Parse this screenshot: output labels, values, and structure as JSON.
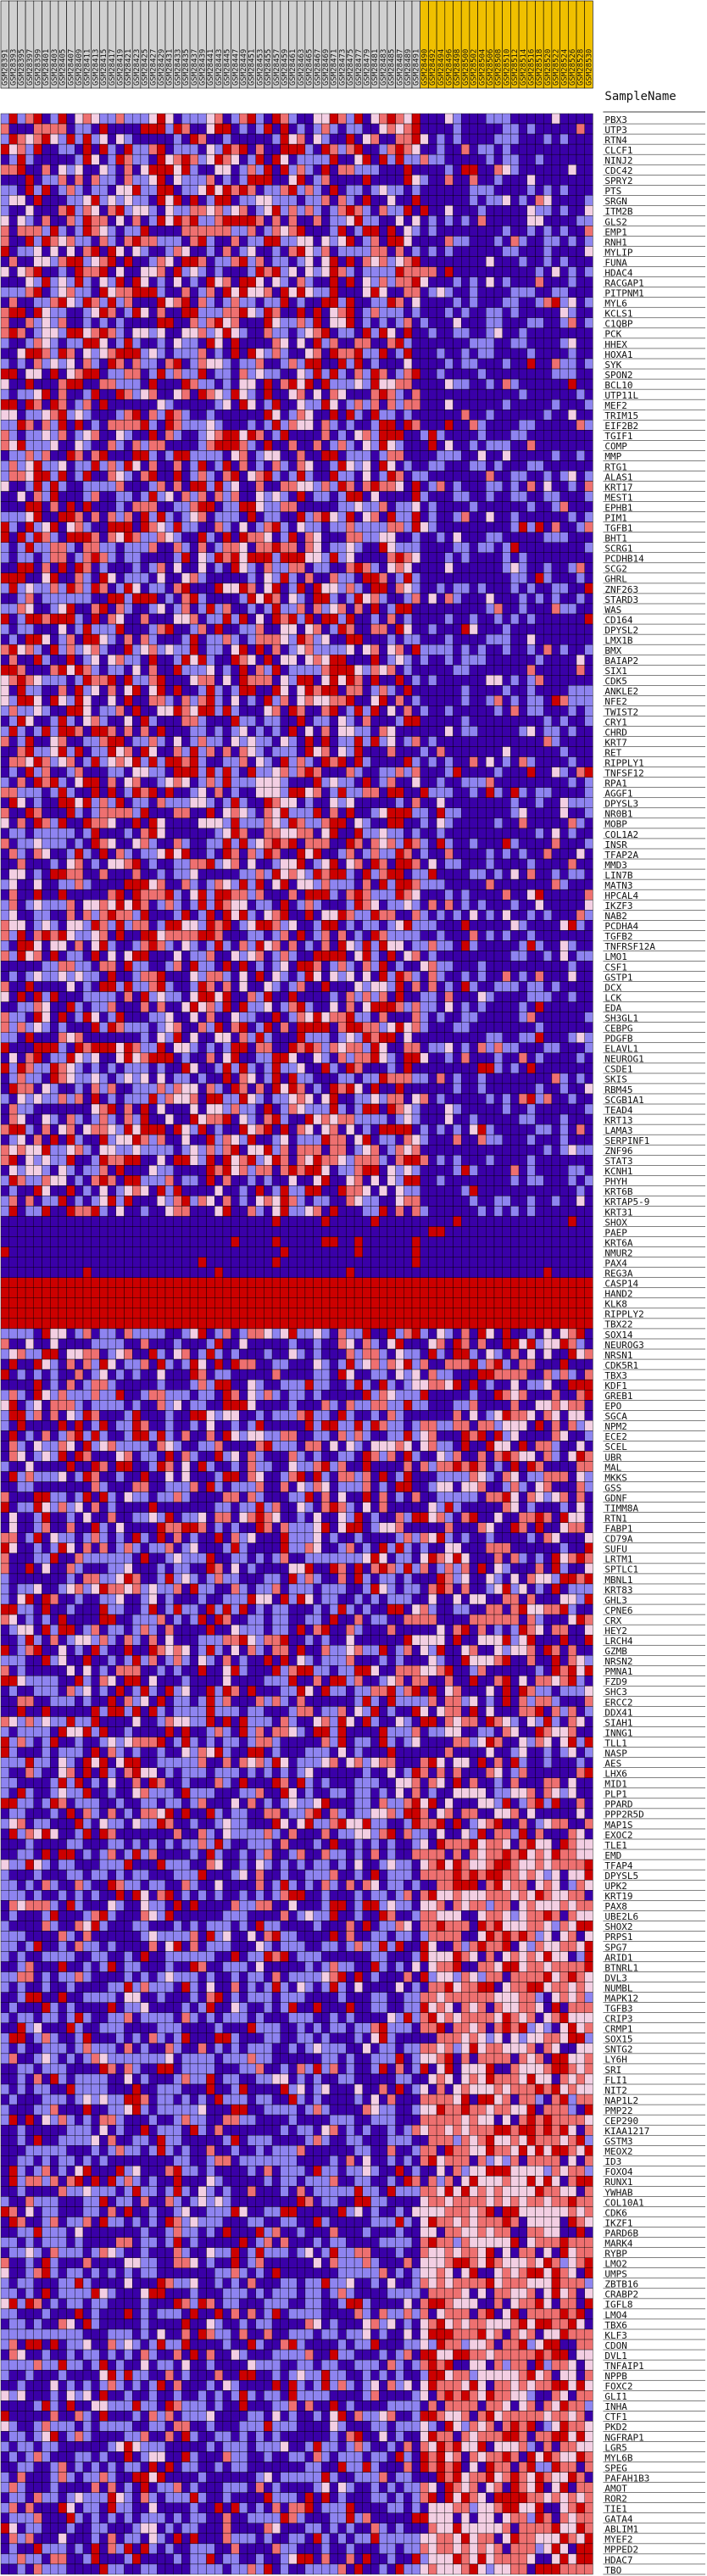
{
  "chart_data": {
    "type": "heatmap",
    "title": "",
    "header_label": "SampleName",
    "colors": {
      "low": "#3a00a8",
      "mid_low": "#8e84f0",
      "neutral": "#f3cfe3",
      "mid_high": "#ee7070",
      "high": "#cc0000",
      "sample_header_group_a": "#d0d0d0",
      "sample_header_group_b": "#f0c000",
      "grid": "#000000"
    },
    "samples": {
      "group_a": [
        "GSM28391",
        "GSM28393",
        "GSM28395",
        "GSM28397",
        "GSM28399",
        "GSM28401",
        "GSM28403",
        "GSM28405",
        "GSM28407",
        "GSM28409",
        "GSM28411",
        "GSM28413",
        "GSM28415",
        "GSM28417",
        "GSM28419",
        "GSM28421",
        "GSM28423",
        "GSM28425",
        "GSM28427",
        "GSM28429",
        "GSM28431",
        "GSM28433",
        "GSM28435",
        "GSM28437",
        "GSM28439",
        "GSM28441",
        "GSM28443",
        "GSM28445",
        "GSM28447",
        "GSM28449",
        "GSM28451",
        "GSM28453",
        "GSM28455",
        "GSM28457",
        "GSM28459",
        "GSM28461",
        "GSM28463",
        "GSM28465",
        "GSM28467",
        "GSM28469",
        "GSM28471",
        "GSM28473",
        "GSM28475",
        "GSM28477",
        "GSM28479",
        "GSM28481",
        "GSM28483",
        "GSM28485",
        "GSM28487",
        "GSM28489",
        "GSM28491"
      ],
      "group_b": [
        "GSM28490",
        "GSM28492",
        "GSM28494",
        "GSM28496",
        "GSM28498",
        "GSM28500",
        "GSM28502",
        "GSM28504",
        "GSM28506",
        "GSM28508",
        "GSM28510",
        "GSM28512",
        "GSM28514",
        "GSM28516",
        "GSM28518",
        "GSM28520",
        "GSM28522",
        "GSM28524",
        "GSM28526",
        "GSM28528",
        "GSM28530"
      ]
    },
    "genes": [
      "PBX3",
      "UTP3",
      "RTN4",
      "CLCF1",
      "NINJ2",
      "CDC42",
      "SPRY2",
      "PTS",
      "SRGN",
      "ITM2B",
      "GLS2",
      "EMP1",
      "RNH1",
      "MYLIP",
      "FUNA",
      "HDAC4",
      "RACGAP1",
      "PITPNM1",
      "MYL6",
      "KCLS1",
      "C1QBP",
      "PCK",
      "HHEX",
      "HOXA1",
      "SYK",
      "SPON2",
      "BCL10",
      "UTP11L",
      "MEF2",
      "TRIM15",
      "EIF2B2",
      "TGIF1",
      "COMP",
      "MMP",
      "RTG1",
      "ALAS1",
      "KRT17",
      "MEST1",
      "EPHB1",
      "PIM1",
      "TGFB1",
      "BHT1",
      "SCRG1",
      "PCDHB14",
      "SCG2",
      "GHRL",
      "ZNF263",
      "STARD3",
      "WAS",
      "CD164",
      "DPYSL2",
      "LMX1B",
      "BMX",
      "BAIAP2",
      "SIX1",
      "CDK5",
      "ANKLE2",
      "NFE2",
      "TWIST2",
      "CRY1",
      "CHRD",
      "KRT7",
      "RET",
      "RIPPLY1",
      "TNFSF12",
      "RPA1",
      "AGGF1",
      "DPYSL3",
      "NR0B1",
      "MOBP",
      "COL1A2",
      "INSR",
      "TFAP2A",
      "MMD3",
      "LIN7B",
      "MATN3",
      "HPCAL4",
      "IKZF3",
      "NAB2",
      "PCDHA4",
      "TGFB2",
      "TNFRSF12A",
      "LMO1",
      "CSF1",
      "GSTP1",
      "DCX",
      "LCK",
      "EDA",
      "SH3GL1",
      "CEBPG",
      "PDGFB",
      "ELAVL1",
      "NEUROG1",
      "CSDE1",
      "SKIS",
      "RBM45",
      "SCGB1A1",
      "TEAD4",
      "KRT13",
      "LAMA3",
      "SERPINF1",
      "ZNF96",
      "STAT3",
      "KCNH1",
      "PHYH",
      "KRT6B",
      "KRTAP5-9",
      "KRT31",
      "SHOX",
      "PAEP",
      "KRT6A",
      "NMUR2",
      "PAX4",
      "REG3A",
      "CASP14",
      "HAND2",
      "KLK8",
      "RIPPLY2",
      "TBX22",
      "SOX14",
      "NEUROG3",
      "NRSN1",
      "CDK5R1",
      "TBX3",
      "KDF1",
      "GREB1",
      "EPO",
      "SGCA",
      "NPM2",
      "ECE2",
      "SCEL",
      "UBR",
      "MAL",
      "MKKS",
      "GSS",
      "GDNF",
      "TIMM8A",
      "RTN1",
      "FABP1",
      "CD79A",
      "SUFU",
      "LRTM1",
      "SPTLC1",
      "MBNL1",
      "KRT83",
      "GHL3",
      "CPNE6",
      "CRX",
      "HEY2",
      "LRCH4",
      "GZMB",
      "NRSN2",
      "PMNA1",
      "FZD9",
      "SHC3",
      "ERCC2",
      "DDX41",
      "SIAH1",
      "INNG1",
      "TLL1",
      "NASP",
      "AES",
      "LHX6",
      "MID1",
      "PLP1",
      "PPARD",
      "PPP2R5D",
      "MAP1S",
      "EXOC2",
      "TLE1",
      "EMD",
      "TFAP4",
      "DPYSL5",
      "UPK2",
      "KRT19",
      "PAX8",
      "UBE2L6",
      "SHOX2",
      "PRPS1",
      "SPG7",
      "ARID1",
      "BTNRL1",
      "DVL3",
      "NUMBL",
      "MAPK12",
      "TGFB3",
      "CRIP3",
      "CRMP1",
      "SOX15",
      "SNTG2",
      "LY6H",
      "SRI",
      "FLI1",
      "NIT2",
      "NAP1L2",
      "PMP22",
      "CEP290",
      "KIAA1217",
      "GSTM3",
      "MEOX2",
      "ID3",
      "FOXO4",
      "RUNX1",
      "YWHAB",
      "COL10A1",
      "CDK6",
      "IKZF1",
      "PARD6B",
      "MARK4",
      "RYBP",
      "LMO2",
      "UMPS",
      "ZBTB16",
      "CRABP2",
      "IGFL8",
      "LMO4",
      "TBX6",
      "KLF3",
      "CDON",
      "DVL1",
      "TNFAIP1",
      "NPPB",
      "FOXC2",
      "GLI1",
      "INHA",
      "CTF1",
      "PKD2",
      "NGFRAP1",
      "LGR5",
      "MYL6B",
      "SPEG",
      "PAFAH1B3",
      "AMOT",
      "ROR2",
      "TIE1",
      "GATA4",
      "ABLIM1",
      "MYEF2",
      "MPPED2",
      "HDAC7",
      "TBO"
    ]
  },
  "page": {
    "header_label": "SampleName"
  }
}
